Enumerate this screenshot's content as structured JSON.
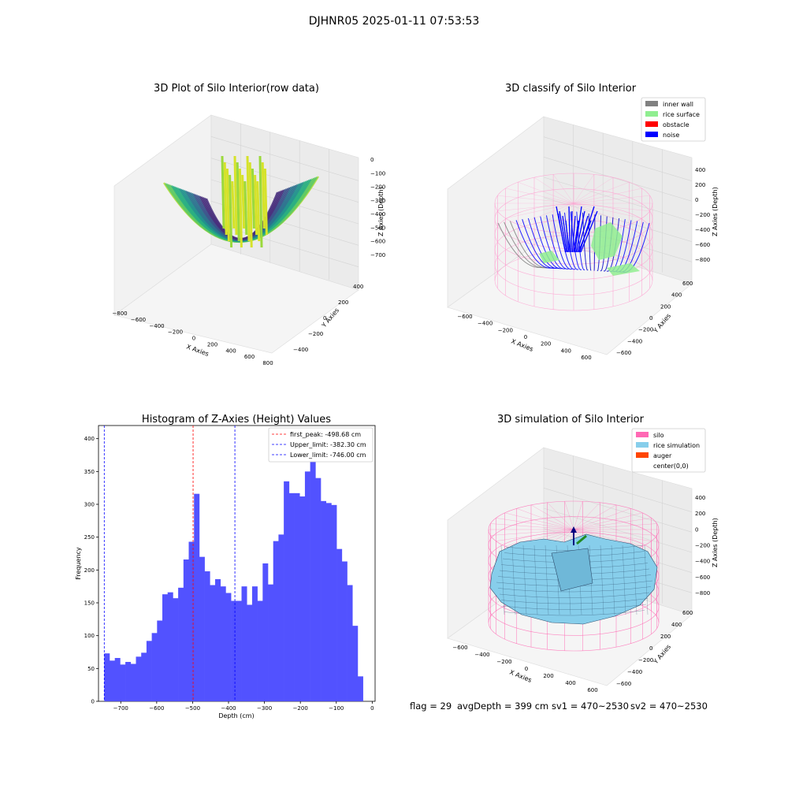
{
  "figure": {
    "suptitle": "DJHNR05 2025-01-11 07:53:53",
    "status": {
      "flag_text": "flag = 29",
      "avg_depth_text": "avgDepth = 399 cm",
      "sv1_text": "sv1 = 470~2530",
      "sv2_text": "sv2 = 470~2530"
    }
  },
  "panels": {
    "raw": {
      "title": "3D Plot of Silo Interior(row data)",
      "xlabel": "X Axies",
      "ylabel": "Y Axies",
      "zlabel": "Z Axies (Depth)",
      "xticks": [
        "−800",
        "−600",
        "−400",
        "−200",
        "0",
        "200",
        "400",
        "600",
        "800"
      ],
      "yticks": [
        "−400",
        "−200",
        "0",
        "200",
        "400"
      ],
      "zticks": [
        "0",
        "−100",
        "−200",
        "−300",
        "−400",
        "−500",
        "−600",
        "−700"
      ],
      "colormap": "viridis"
    },
    "classify": {
      "title": "3D classify of Silo Interior",
      "xlabel": "X Axies",
      "ylabel": "Y Axies",
      "zlabel": "Z Axies (Depth)",
      "xticks": [
        "−600",
        "−400",
        "−200",
        "0",
        "200",
        "400",
        "600"
      ],
      "yticks": [
        "−600",
        "−400",
        "−200",
        "0",
        "200",
        "400",
        "600"
      ],
      "zticks": [
        "400",
        "200",
        "0",
        "−200",
        "−400",
        "−600",
        "−800"
      ],
      "legend": [
        {
          "label": "inner wall",
          "color": "#808080"
        },
        {
          "label": "rice surface",
          "color": "#90ee90"
        },
        {
          "label": "obstacle",
          "color": "#ff0000"
        },
        {
          "label": "noise",
          "color": "#0000ff"
        }
      ],
      "wall_color": "#ff9ccf"
    },
    "simulation": {
      "title": "3D simulation of Silo Interior",
      "xlabel": "X Axies",
      "ylabel": "Y Axies",
      "zlabel": "Z Axies (Depth)",
      "xticks": [
        "−600",
        "−400",
        "−200",
        "0",
        "200",
        "400",
        "600"
      ],
      "yticks": [
        "−600",
        "−400",
        "−200",
        "0",
        "200",
        "400",
        "600"
      ],
      "zticks": [
        "400",
        "200",
        "0",
        "−200",
        "−400",
        "−600",
        "−800"
      ],
      "legend": [
        {
          "label": "silo",
          "color": "#ff69b4"
        },
        {
          "label": "rice simulation",
          "color": "#87ceeb"
        },
        {
          "label": "auger",
          "color": "#ff4500"
        },
        {
          "label": "center(0,0)",
          "color": "#ffffff"
        }
      ]
    }
  },
  "chart_data": {
    "type": "bar",
    "title": "Histogram of Z-Axies (Height) Values",
    "xlabel": "Depth (cm)",
    "ylabel": "Frequency",
    "xlim": [
      -762,
      8
    ],
    "ylim": [
      0,
      420
    ],
    "xticks": [
      -700,
      -600,
      -500,
      -400,
      -300,
      -200,
      -100,
      0
    ],
    "yticks": [
      0,
      50,
      100,
      150,
      200,
      250,
      300,
      350,
      400
    ],
    "bar_color": "#5252ff",
    "bin_start": -746,
    "bin_width": 14.7,
    "values": [
      73,
      62,
      66,
      56,
      60,
      57,
      68,
      74,
      92,
      104,
      123,
      163,
      166,
      157,
      173,
      216,
      243,
      316,
      220,
      198,
      177,
      186,
      175,
      165,
      153,
      153,
      175,
      147,
      175,
      153,
      210,
      178,
      244,
      254,
      335,
      317,
      317,
      312,
      350,
      369,
      340,
      305,
      302,
      299,
      232,
      213,
      177,
      115,
      38
    ],
    "legend_position": "top-right",
    "lines": [
      {
        "label": "first_peak: -498.68 cm",
        "x": -498.68,
        "color": "#ff0000"
      },
      {
        "label": "Upper_limit: -382.30 cm",
        "x": -382.3,
        "color": "#0000ff"
      },
      {
        "label": "Lower_limit: -746.00 cm",
        "x": -746.0,
        "color": "#0000ff"
      }
    ]
  }
}
